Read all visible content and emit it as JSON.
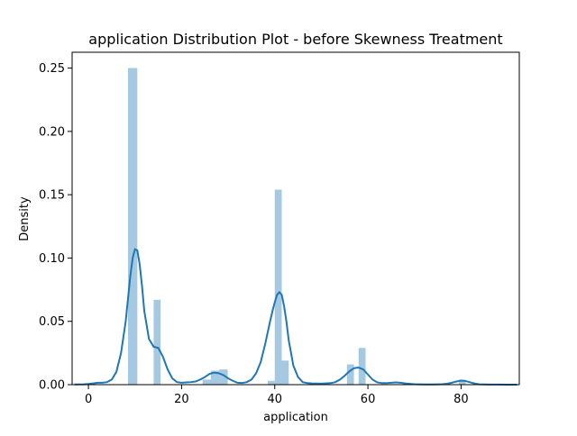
{
  "chart_data": {
    "type": "bar",
    "title": "application Distribution Plot - before Skewness Treatment",
    "xlabel": "application",
    "ylabel": "Density",
    "xlim": [
      -3.5,
      92.5
    ],
    "ylim": [
      0,
      0.2625
    ],
    "x_ticks": [
      0,
      20,
      40,
      60,
      80
    ],
    "y_ticks": [
      0.0,
      0.05,
      0.1,
      0.15,
      0.2,
      0.25
    ],
    "x_tick_labels": [
      "0",
      "20",
      "40",
      "60",
      "80"
    ],
    "y_tick_labels": [
      "0.00",
      "0.05",
      "0.10",
      "0.15",
      "0.20",
      "0.25"
    ],
    "grid": false,
    "legend": "none",
    "colors": {
      "bars": "#1f77b4",
      "bar_alpha": 0.4,
      "kde": "#1f77b4"
    },
    "histogram": {
      "bins": [
        {
          "x0": 8.5,
          "x1": 10.5,
          "density": 0.25
        },
        {
          "x0": 14.0,
          "x1": 15.5,
          "density": 0.067
        },
        {
          "x0": 24.5,
          "x1": 26.3,
          "density": 0.004
        },
        {
          "x0": 26.3,
          "x1": 28.1,
          "density": 0.011
        },
        {
          "x0": 28.1,
          "x1": 29.9,
          "density": 0.012
        },
        {
          "x0": 38.5,
          "x1": 40.0,
          "density": 0.003
        },
        {
          "x0": 40.0,
          "x1": 41.5,
          "density": 0.154
        },
        {
          "x0": 41.5,
          "x1": 43.0,
          "density": 0.019
        },
        {
          "x0": 55.5,
          "x1": 57.0,
          "density": 0.016
        },
        {
          "x0": 58.0,
          "x1": 59.5,
          "density": 0.029
        },
        {
          "x0": 79.5,
          "x1": 81.0,
          "density": 0.004
        }
      ]
    },
    "kde": {
      "x": [
        -3,
        -1,
        0,
        1,
        2,
        3,
        4,
        5,
        6,
        7,
        8,
        8.5,
        9,
        9.5,
        10,
        10.5,
        11,
        11.5,
        12,
        13,
        14,
        15,
        16,
        17,
        18,
        19,
        20,
        21,
        22,
        23,
        24,
        25,
        26,
        27,
        28,
        29,
        30,
        31,
        32,
        33,
        34,
        35,
        36,
        37,
        38,
        39,
        39.5,
        40,
        40.5,
        41,
        41.5,
        42,
        42.5,
        43,
        44,
        45,
        46,
        47,
        48,
        50,
        52,
        53,
        54,
        55,
        56,
        57,
        58,
        59,
        60,
        61,
        62,
        63,
        64,
        65,
        66,
        67,
        68,
        70,
        72,
        74,
        76,
        77,
        78,
        79,
        80,
        81,
        82,
        83,
        84,
        86,
        88,
        90,
        92
      ],
      "y": [
        0.0002,
        0.0003,
        0.0005,
        0.001,
        0.0015,
        0.0015,
        0.002,
        0.004,
        0.01,
        0.025,
        0.05,
        0.068,
        0.086,
        0.1,
        0.107,
        0.106,
        0.095,
        0.078,
        0.058,
        0.036,
        0.03,
        0.029,
        0.022,
        0.012,
        0.005,
        0.002,
        0.0015,
        0.0018,
        0.002,
        0.0025,
        0.004,
        0.006,
        0.0085,
        0.0095,
        0.009,
        0.0075,
        0.005,
        0.003,
        0.0015,
        0.0013,
        0.002,
        0.004,
        0.009,
        0.018,
        0.033,
        0.05,
        0.058,
        0.065,
        0.071,
        0.073,
        0.071,
        0.062,
        0.05,
        0.035,
        0.015,
        0.006,
        0.002,
        0.0012,
        0.001,
        0.0008,
        0.0012,
        0.002,
        0.004,
        0.007,
        0.0105,
        0.013,
        0.0135,
        0.012,
        0.008,
        0.004,
        0.0018,
        0.0012,
        0.0012,
        0.0015,
        0.0018,
        0.0015,
        0.001,
        0.0004,
        0.0002,
        0.0002,
        0.0004,
        0.0007,
        0.0015,
        0.0025,
        0.0032,
        0.0028,
        0.0018,
        0.0008,
        0.0003,
        0.0001,
        5e-05,
        0.0,
        0.0
      ]
    }
  }
}
